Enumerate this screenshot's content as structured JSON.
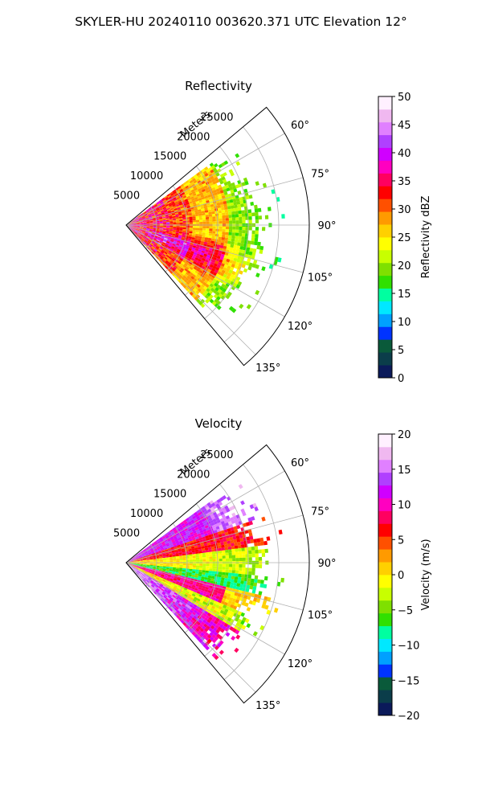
{
  "suptitle": "SKYLER-HU  20240110  003620.371 UTC Elevation 12°",
  "chart_data": [
    {
      "type": "heatmap",
      "projection": "polar-sector",
      "title": "Reflectivity",
      "theta_range_deg": [
        50,
        140
      ],
      "theta_ticks": [
        "60°",
        "75°",
        "90°",
        "105°",
        "120°",
        "135°"
      ],
      "theta_tick_values": [
        60,
        75,
        90,
        105,
        120,
        135
      ],
      "r_label": "Meters",
      "r_ticks": [
        "5000",
        "10000",
        "15000",
        "20000",
        "25000"
      ],
      "r_tick_values": [
        5000,
        10000,
        15000,
        20000,
        25000
      ],
      "r_range": [
        0,
        30000
      ],
      "grid": true,
      "colorbar": {
        "label": "Reflectivity dBZ",
        "range": [
          0,
          50
        ],
        "ticks": [
          "0",
          "5",
          "10",
          "15",
          "20",
          "25",
          "30",
          "35",
          "40",
          "45",
          "50"
        ],
        "tick_values": [
          0,
          5,
          10,
          15,
          20,
          25,
          30,
          35,
          40,
          45,
          50
        ],
        "colormap": [
          "#0b1a5a",
          "#0b3d4a",
          "#0a5a3a",
          "#0033ff",
          "#00a0ff",
          "#00e8ff",
          "#00ffa0",
          "#30e000",
          "#7fe000",
          "#c8ff00",
          "#ffff00",
          "#ffd000",
          "#ff9a00",
          "#ff5000",
          "#ff0000",
          "#ff0060",
          "#ff00c0",
          "#d000ff",
          "#b040ff",
          "#e080ff",
          "#f0b8f0",
          "#fff0ff"
        ]
      }
    },
    {
      "type": "heatmap",
      "projection": "polar-sector",
      "title": "Velocity",
      "theta_range_deg": [
        50,
        140
      ],
      "theta_ticks": [
        "60°",
        "75°",
        "90°",
        "105°",
        "120°",
        "135°"
      ],
      "theta_tick_values": [
        60,
        75,
        90,
        105,
        120,
        135
      ],
      "r_label": "Meters",
      "r_ticks": [
        "5000",
        "10000",
        "15000",
        "20000",
        "25000"
      ],
      "r_tick_values": [
        5000,
        10000,
        15000,
        20000,
        25000
      ],
      "r_range": [
        0,
        30000
      ],
      "grid": true,
      "colorbar": {
        "label": "Velocity (m/s)",
        "range": [
          -20,
          20
        ],
        "ticks": [
          "−20",
          "−15",
          "−10",
          "−5",
          "0",
          "5",
          "10",
          "15",
          "20"
        ],
        "tick_values": [
          -20,
          -15,
          -10,
          -5,
          0,
          5,
          10,
          15,
          20
        ],
        "colormap": [
          "#0b1a5a",
          "#0b3d4a",
          "#0a5a3a",
          "#0033ff",
          "#00a0ff",
          "#00e8ff",
          "#00ffa0",
          "#30e000",
          "#7fe000",
          "#c8ff00",
          "#ffff00",
          "#ffd000",
          "#ff9a00",
          "#ff5000",
          "#ff0000",
          "#ff0060",
          "#ff00c0",
          "#d000ff",
          "#b040ff",
          "#e080ff",
          "#f0b8f0",
          "#fff0ff"
        ]
      }
    }
  ]
}
